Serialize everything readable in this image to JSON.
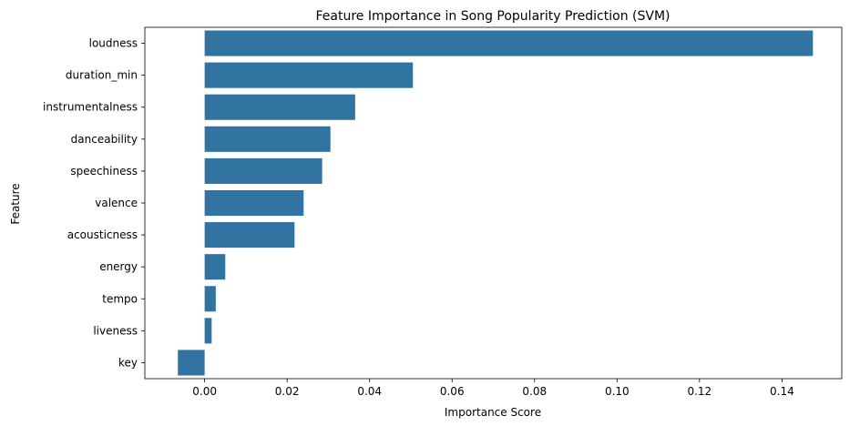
{
  "chart_data": {
    "type": "bar",
    "orientation": "horizontal",
    "title": "Feature Importance in Song Popularity Prediction (SVM)",
    "xlabel": "Importance Score",
    "ylabel": "Feature",
    "categories": [
      "loudness",
      "duration_min",
      "instrumentalness",
      "danceability",
      "speechiness",
      "valence",
      "acousticness",
      "energy",
      "tempo",
      "liveness",
      "key"
    ],
    "values": [
      0.1475,
      0.0505,
      0.0365,
      0.0305,
      0.0285,
      0.024,
      0.0218,
      0.005,
      0.0027,
      0.0017,
      -0.0065
    ],
    "xlim": [
      -0.0145,
      0.1545
    ],
    "xticks": [
      "0.00",
      "0.02",
      "0.04",
      "0.06",
      "0.08",
      "0.10",
      "0.12",
      "0.14"
    ],
    "xtick_values": [
      0.0,
      0.02,
      0.04,
      0.06,
      0.08,
      0.1,
      0.12,
      0.14
    ],
    "grid": false,
    "bar_color": "#3274a1"
  }
}
